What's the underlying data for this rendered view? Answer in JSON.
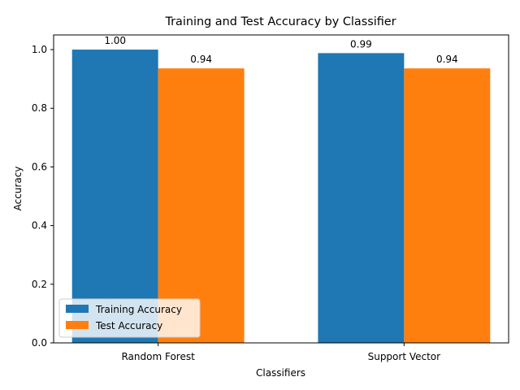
{
  "chart_data": {
    "type": "bar",
    "title": "Training and Test Accuracy by Classifier",
    "xlabel": "Classifiers",
    "ylabel": "Accuracy",
    "categories": [
      "Random Forest",
      "Support Vector"
    ],
    "series": [
      {
        "name": "Training Accuracy",
        "values": [
          1.0,
          0.988
        ],
        "labels": [
          "1.00",
          "0.99"
        ],
        "color": "#1f77b4"
      },
      {
        "name": "Test Accuracy",
        "values": [
          0.936,
          0.936
        ],
        "labels": [
          "0.94",
          "0.94"
        ],
        "color": "#ff7f0e"
      }
    ],
    "ylim": [
      0,
      1.05
    ],
    "yticks": [
      0.0,
      0.2,
      0.4,
      0.6,
      0.8,
      1.0
    ],
    "ytick_labels": [
      "0.0",
      "0.2",
      "0.4",
      "0.6",
      "0.8",
      "1.0"
    ],
    "grid": false,
    "legend_position": "lower-left"
  }
}
